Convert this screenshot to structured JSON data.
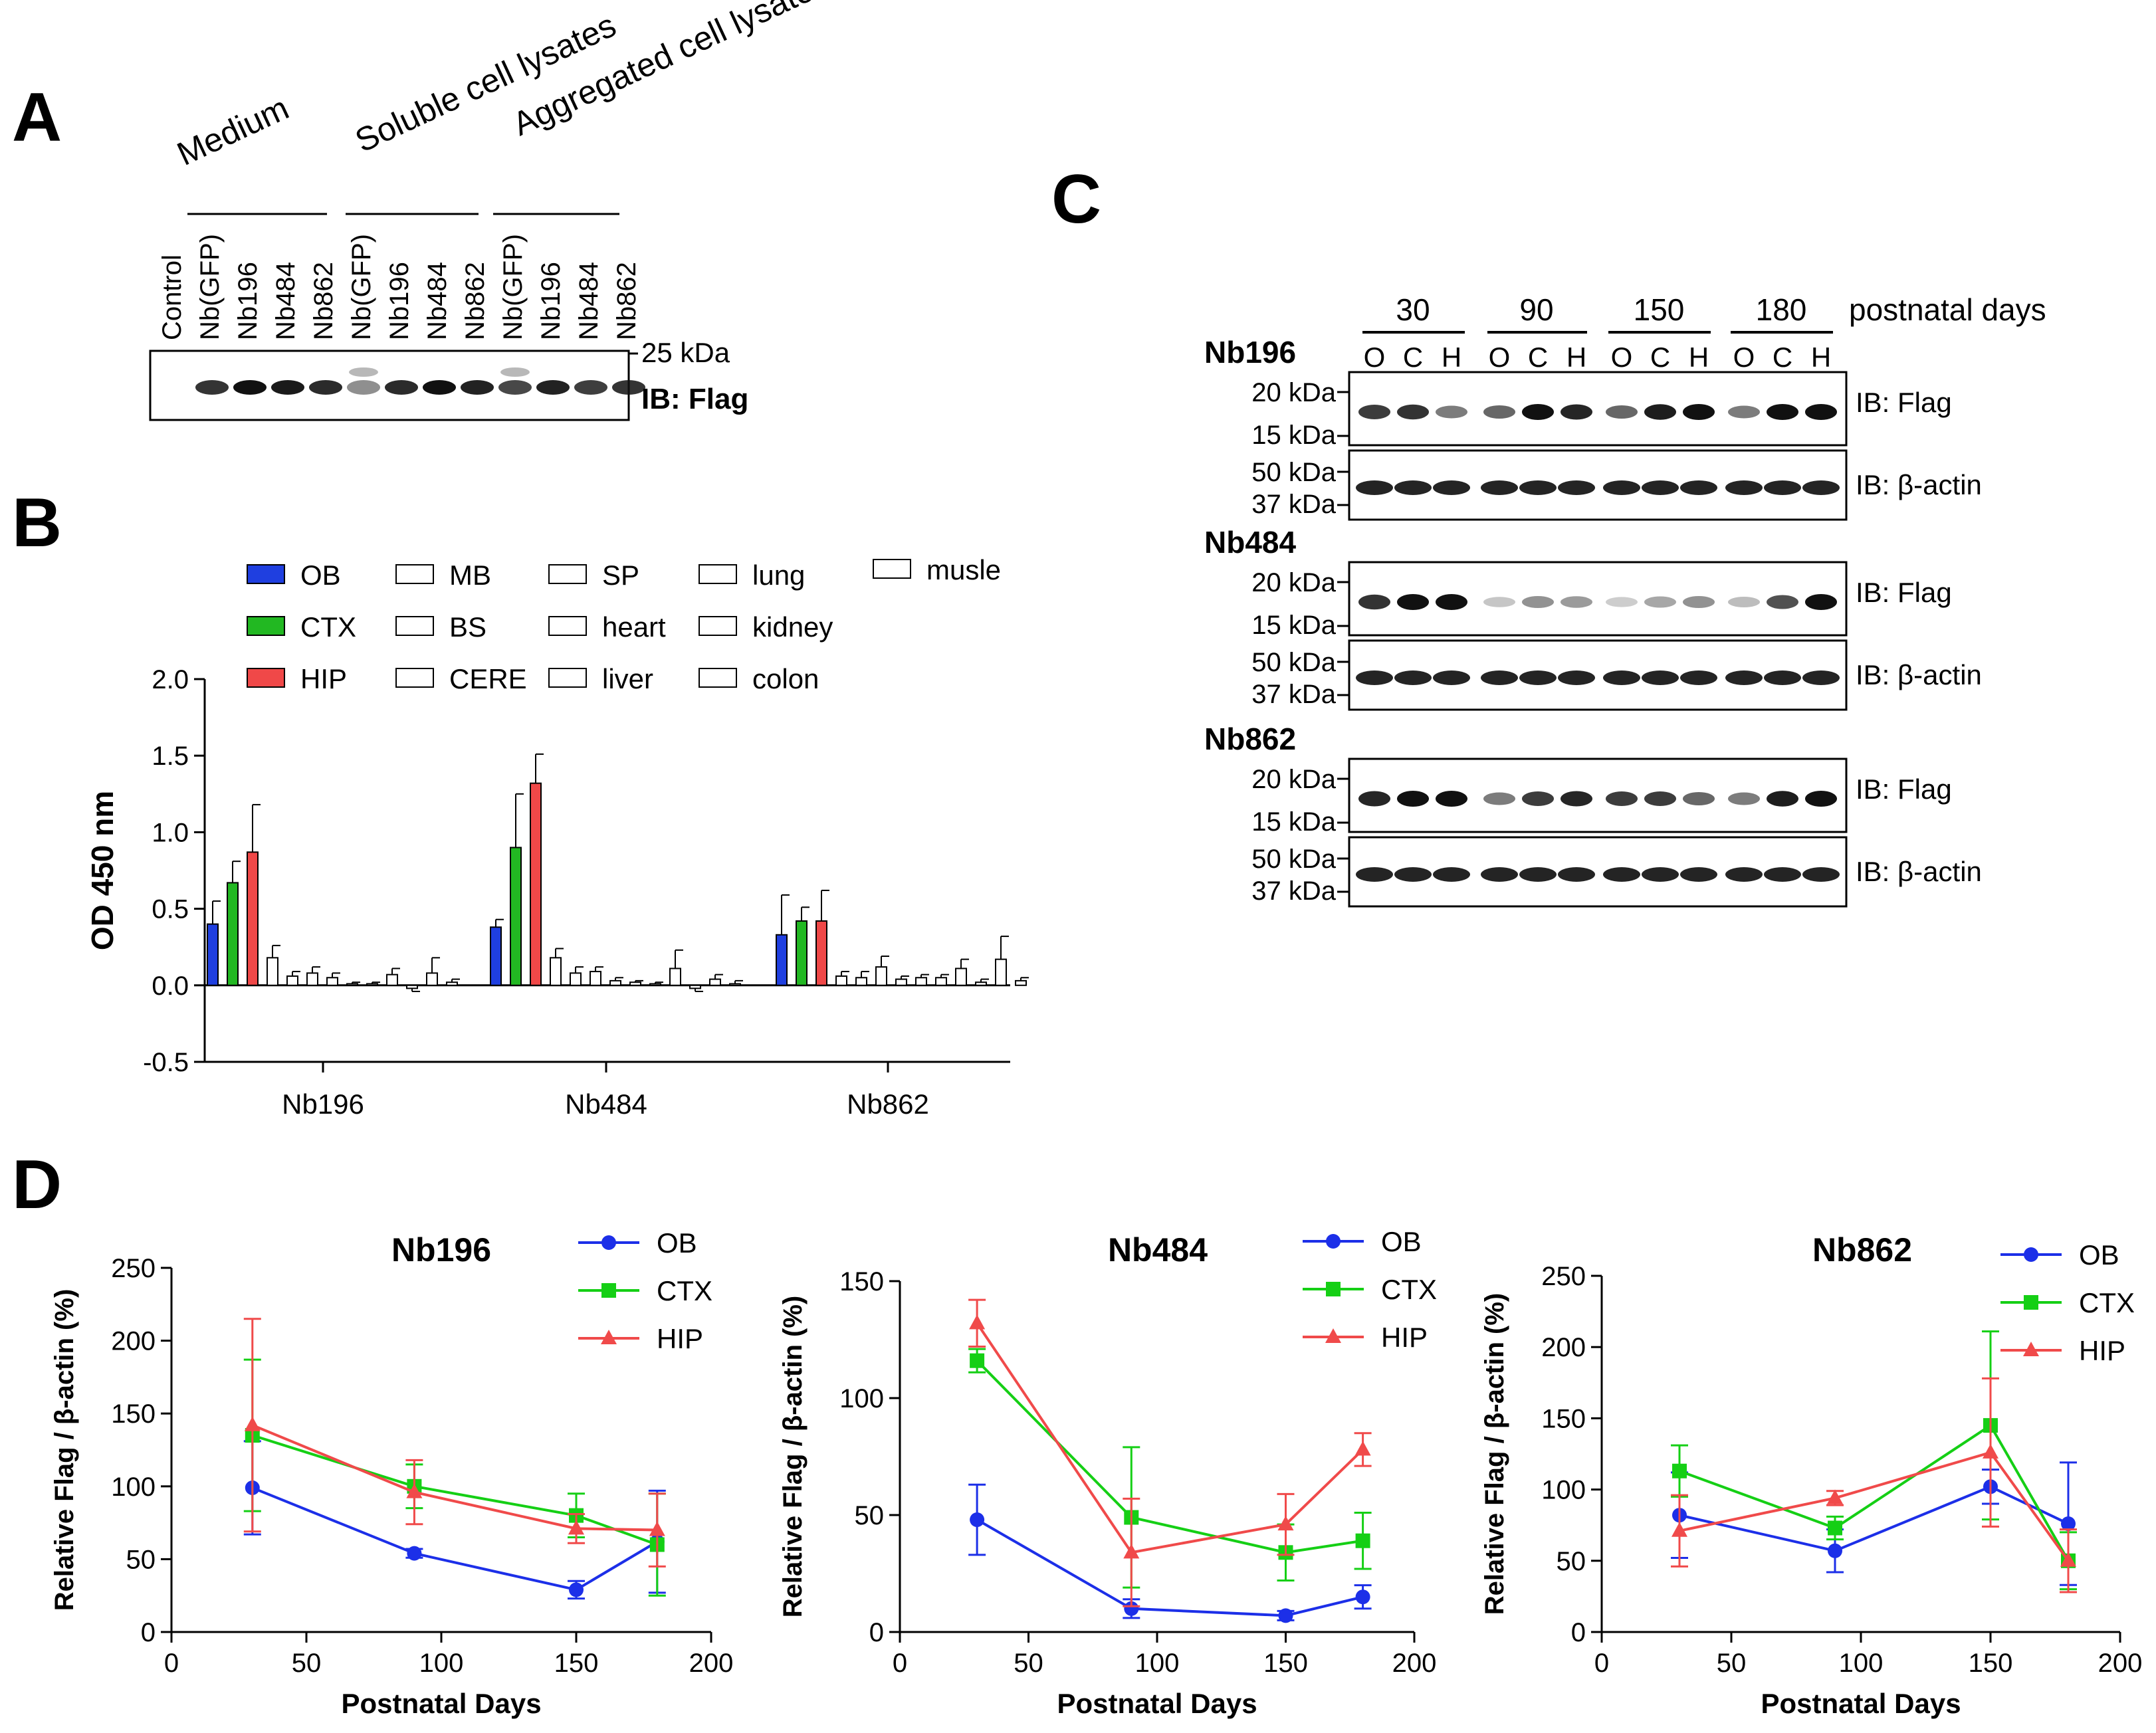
{
  "panelA": {
    "letter": "A",
    "groups": [
      {
        "label": "Medium"
      },
      {
        "label": "Soluble cell lysates"
      },
      {
        "label": "Aggregated cell lysates"
      }
    ],
    "lanes": [
      "Control",
      "Nb(GFP)",
      "Nb196",
      "Nb484",
      "Nb862",
      "Nb(GFP)",
      "Nb196",
      "Nb484",
      "Nb862",
      "Nb(GFP)",
      "Nb196",
      "Nb484",
      "Nb862"
    ],
    "marker": "25 kDa",
    "ib": "IB: Flag",
    "band_intensity": [
      0,
      0.8,
      1.0,
      0.95,
      0.85,
      0.3,
      0.85,
      1.0,
      0.9,
      0.7,
      0.9,
      0.75,
      0.8
    ]
  },
  "panelB": {
    "letter": "B",
    "legend": [
      {
        "label": "OB",
        "color": "#1f3fe0",
        "filled": true
      },
      {
        "label": "CTX",
        "color": "#22b822",
        "filled": true
      },
      {
        "label": "HIP",
        "color": "#f04848",
        "filled": true
      },
      {
        "label": "MB",
        "filled": false
      },
      {
        "label": "BS",
        "filled": false
      },
      {
        "label": "CERE",
        "filled": false
      },
      {
        "label": "SP",
        "filled": false
      },
      {
        "label": "heart",
        "filled": false
      },
      {
        "label": "liver",
        "filled": false
      },
      {
        "label": "lung",
        "filled": false
      },
      {
        "label": "kidney",
        "filled": false
      },
      {
        "label": "colon",
        "filled": false
      },
      {
        "label": "musle",
        "filled": false
      }
    ]
  },
  "panelC": {
    "letter": "C",
    "days": [
      "30",
      "90",
      "150",
      "180"
    ],
    "days_label": "postnatal days",
    "regions": [
      "O",
      "C",
      "H"
    ],
    "blots": [
      {
        "name": "Nb196",
        "flag_markers": [
          "20 kDa",
          "15 kDa"
        ],
        "actin_markers": [
          "50 kDa",
          "37 kDa"
        ],
        "flag_label": "IB: Flag",
        "actin_label": "IB: β-actin",
        "flag_intensity": [
          0.8,
          0.85,
          0.5,
          0.6,
          1.0,
          0.9,
          0.6,
          0.95,
          1.0,
          0.5,
          1.0,
          1.0
        ]
      },
      {
        "name": "Nb484",
        "flag_markers": [
          "20 kDa",
          "15 kDa"
        ],
        "actin_markers": [
          "50 kDa",
          "37 kDa"
        ],
        "flag_label": "IB: Flag",
        "actin_label": "IB: β-actin",
        "flag_intensity": [
          0.85,
          1.0,
          1.0,
          0.15,
          0.4,
          0.35,
          0.12,
          0.3,
          0.4,
          0.2,
          0.7,
          1.0
        ]
      },
      {
        "name": "Nb862",
        "flag_markers": [
          "20 kDa",
          "15 kDa"
        ],
        "actin_markers": [
          "50 kDa",
          "37 kDa"
        ],
        "flag_label": "IB: Flag",
        "actin_label": "IB: β-actin",
        "flag_intensity": [
          0.9,
          1.0,
          1.0,
          0.5,
          0.8,
          0.9,
          0.8,
          0.8,
          0.6,
          0.5,
          0.95,
          1.0
        ]
      }
    ]
  },
  "panelD": {
    "letter": "D"
  },
  "chart_data": [
    {
      "id": "B",
      "type": "bar",
      "title": "",
      "ylabel": "OD 450 nm",
      "xlabel": "",
      "ylim": [
        -0.5,
        2.0
      ],
      "yticks": [
        -0.5,
        0.0,
        0.5,
        1.0,
        1.5,
        2.0
      ],
      "ytick_labels": [
        "-0.5",
        "0.0",
        "0.5",
        "1.0",
        "1.5",
        "2.0"
      ],
      "categories": [
        "Nb196",
        "Nb484",
        "Nb862"
      ],
      "series": [
        {
          "name": "OB",
          "color": "#1f3fe0",
          "values": [
            0.4,
            0.38,
            0.33
          ],
          "errors": [
            0.15,
            0.05,
            0.26
          ]
        },
        {
          "name": "CTX",
          "color": "#22b822",
          "values": [
            0.67,
            0.9,
            0.42
          ],
          "errors": [
            0.14,
            0.35,
            0.09
          ]
        },
        {
          "name": "HIP",
          "color": "#f04848",
          "values": [
            0.87,
            1.32,
            0.42
          ],
          "errors": [
            0.31,
            0.19,
            0.2
          ]
        },
        {
          "name": "MB",
          "color": "#ffffff",
          "values": [
            0.18,
            0.18,
            0.06
          ],
          "errors": [
            0.08,
            0.06,
            0.03
          ]
        },
        {
          "name": "BS",
          "color": "#ffffff",
          "values": [
            0.06,
            0.08,
            0.05
          ],
          "errors": [
            0.03,
            0.04,
            0.04
          ]
        },
        {
          "name": "CERE",
          "color": "#ffffff",
          "values": [
            0.08,
            0.09,
            0.12
          ],
          "errors": [
            0.04,
            0.03,
            0.07
          ]
        },
        {
          "name": "SP",
          "color": "#ffffff",
          "values": [
            0.05,
            0.03,
            0.04
          ],
          "errors": [
            0.03,
            0.02,
            0.02
          ]
        },
        {
          "name": "heart",
          "color": "#ffffff",
          "values": [
            0.01,
            0.02,
            0.05
          ],
          "errors": [
            0.01,
            0.01,
            0.02
          ]
        },
        {
          "name": "liver",
          "color": "#ffffff",
          "values": [
            0.01,
            0.01,
            0.05
          ],
          "errors": [
            0.01,
            0.01,
            0.02
          ]
        },
        {
          "name": "lung",
          "color": "#ffffff",
          "values": [
            0.07,
            0.11,
            0.11
          ],
          "errors": [
            0.04,
            0.12,
            0.06
          ]
        },
        {
          "name": "kidney",
          "color": "#ffffff",
          "values": [
            -0.02,
            -0.02,
            0.02
          ],
          "errors": [
            0.02,
            0.02,
            0.02
          ]
        },
        {
          "name": "colon",
          "color": "#ffffff",
          "values": [
            0.08,
            0.04,
            0.17
          ],
          "errors": [
            0.1,
            0.03,
            0.15
          ]
        },
        {
          "name": "musle",
          "color": "#ffffff",
          "values": [
            0.02,
            0.01,
            0.03
          ],
          "errors": [
            0.02,
            0.02,
            0.02
          ]
        }
      ]
    },
    {
      "id": "D1",
      "type": "line",
      "title": "Nb196",
      "xlabel": "Postnatal Days",
      "ylabel": "Relative Flag / β-actin (%)",
      "xlim": [
        0,
        200
      ],
      "ylim": [
        0,
        250
      ],
      "xticks": [
        0,
        50,
        100,
        150,
        200
      ],
      "yticks": [
        0,
        50,
        100,
        150,
        200,
        250
      ],
      "x": [
        30,
        90,
        150,
        180
      ],
      "series": [
        {
          "name": "OB",
          "color": "#1c2fe8",
          "marker": "circle",
          "values": [
            99,
            54,
            29,
            62
          ],
          "errors": [
            32,
            3,
            6,
            35
          ]
        },
        {
          "name": "CTX",
          "color": "#15cf15",
          "marker": "square",
          "values": [
            135,
            100,
            80,
            60
          ],
          "errors": [
            52,
            15,
            15,
            35
          ]
        },
        {
          "name": "HIP",
          "color": "#f04a4a",
          "marker": "triangle",
          "values": [
            142,
            96,
            71,
            70
          ],
          "errors": [
            73,
            22,
            10,
            25
          ]
        }
      ]
    },
    {
      "id": "D2",
      "type": "line",
      "title": "Nb484",
      "xlabel": "Postnatal Days",
      "ylabel": "Relative Flag / β-actin (%)",
      "xlim": [
        0,
        200
      ],
      "ylim": [
        0,
        150
      ],
      "xticks": [
        0,
        50,
        100,
        150,
        200
      ],
      "yticks": [
        0,
        50,
        100,
        150
      ],
      "x": [
        30,
        90,
        150,
        180
      ],
      "series": [
        {
          "name": "OB",
          "color": "#1c2fe8",
          "marker": "circle",
          "values": [
            48,
            10,
            7,
            15
          ],
          "errors": [
            15,
            4,
            2,
            5
          ]
        },
        {
          "name": "CTX",
          "color": "#15cf15",
          "marker": "square",
          "values": [
            116,
            49,
            34,
            39
          ],
          "errors": [
            5,
            30,
            12,
            12
          ]
        },
        {
          "name": "HIP",
          "color": "#f04a4a",
          "marker": "triangle",
          "values": [
            132,
            34,
            46,
            78
          ],
          "errors": [
            10,
            23,
            13,
            7
          ]
        }
      ]
    },
    {
      "id": "D3",
      "type": "line",
      "title": "Nb862",
      "xlabel": "Postnatal Days",
      "ylabel": "Relative Flag / β-actin (%)",
      "xlim": [
        0,
        200
      ],
      "ylim": [
        0,
        250
      ],
      "xticks": [
        0,
        50,
        100,
        150,
        200
      ],
      "yticks": [
        0,
        50,
        100,
        150,
        200,
        250
      ],
      "x": [
        30,
        90,
        150,
        180
      ],
      "series": [
        {
          "name": "OB",
          "color": "#1c2fe8",
          "marker": "circle",
          "values": [
            82,
            57,
            102,
            76
          ],
          "errors": [
            30,
            15,
            12,
            43
          ]
        },
        {
          "name": "CTX",
          "color": "#15cf15",
          "marker": "square",
          "values": [
            113,
            73,
            145,
            50
          ],
          "errors": [
            18,
            8,
            66,
            20
          ]
        },
        {
          "name": "HIP",
          "color": "#f04a4a",
          "marker": "triangle",
          "values": [
            71,
            94,
            126,
            50
          ],
          "errors": [
            25,
            5,
            52,
            22
          ]
        }
      ]
    }
  ]
}
